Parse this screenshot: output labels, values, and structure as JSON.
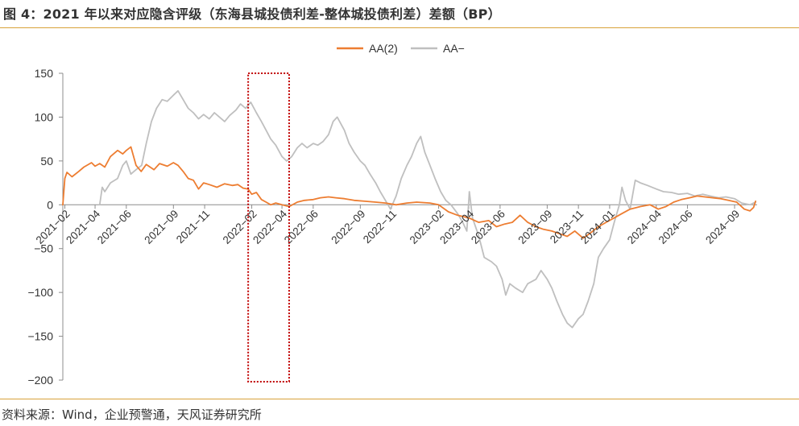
{
  "header": {
    "title": "图 4：2021 年以来对应隐含评级（东海县城投债利差-整体城投债利差）差额（BP）"
  },
  "footer": {
    "source": "资料来源：Wind，企业预警通，天风证券研究所"
  },
  "chart_data": {
    "type": "line",
    "title": "",
    "xlabel": "",
    "ylabel": "",
    "ylim": [
      -200,
      150
    ],
    "yticks": [
      150,
      100,
      50,
      0,
      -50,
      -100,
      -150,
      -200
    ],
    "grid": false,
    "legend": "top-center",
    "x_tick_labels": [
      "2021-02",
      "2021-04",
      "2021-06",
      "2021-09",
      "2021-11",
      "2022-02",
      "2022-04",
      "2022-06",
      "2022-09",
      "2022-11",
      "2023-02",
      "2023-04",
      "2023-06",
      "2023-09",
      "2023-11",
      "2024-01",
      "2024-04",
      "2024-06",
      "2024-09"
    ],
    "x_tick_dates": [
      "2021-02-01",
      "2021-04-01",
      "2021-06-01",
      "2021-09-01",
      "2021-11-01",
      "2022-02-01",
      "2022-04-01",
      "2022-06-01",
      "2022-09-01",
      "2022-11-01",
      "2023-02-01",
      "2023-04-01",
      "2023-06-01",
      "2023-09-01",
      "2023-11-01",
      "2024-01-01",
      "2024-04-01",
      "2024-06-01",
      "2024-09-01"
    ],
    "highlight_box": {
      "x_start": "2022-01-25",
      "x_end": "2022-04-15",
      "style": "dotted",
      "color": "#c00000"
    },
    "series": [
      {
        "name": "AA(2)",
        "color": "#ed7d31",
        "points": [
          [
            "2021-01-28",
            0
          ],
          [
            "2021-02-01",
            30
          ],
          [
            "2021-02-05",
            37
          ],
          [
            "2021-02-15",
            32
          ],
          [
            "2021-02-28",
            38
          ],
          [
            "2021-03-10",
            43
          ],
          [
            "2021-03-25",
            48
          ],
          [
            "2021-04-01",
            44
          ],
          [
            "2021-04-10",
            47
          ],
          [
            "2021-04-20",
            43
          ],
          [
            "2021-05-01",
            55
          ],
          [
            "2021-05-15",
            62
          ],
          [
            "2021-05-25",
            58
          ],
          [
            "2021-06-01",
            62
          ],
          [
            "2021-06-10",
            66
          ],
          [
            "2021-06-20",
            45
          ],
          [
            "2021-06-30",
            38
          ],
          [
            "2021-07-10",
            46
          ],
          [
            "2021-07-25",
            40
          ],
          [
            "2021-08-05",
            47
          ],
          [
            "2021-08-20",
            44
          ],
          [
            "2021-09-01",
            48
          ],
          [
            "2021-09-10",
            45
          ],
          [
            "2021-09-20",
            38
          ],
          [
            "2021-09-30",
            30
          ],
          [
            "2021-10-10",
            28
          ],
          [
            "2021-10-20",
            18
          ],
          [
            "2021-10-30",
            25
          ],
          [
            "2021-11-10",
            23
          ],
          [
            "2021-11-25",
            20
          ],
          [
            "2021-12-10",
            24
          ],
          [
            "2021-12-25",
            22
          ],
          [
            "2022-01-05",
            23
          ],
          [
            "2022-01-15",
            19
          ],
          [
            "2022-01-25",
            18
          ],
          [
            "2022-02-01",
            12
          ],
          [
            "2022-02-10",
            14
          ],
          [
            "2022-02-20",
            6
          ],
          [
            "2022-03-01",
            3
          ],
          [
            "2022-03-10",
            0
          ],
          [
            "2022-03-20",
            2
          ],
          [
            "2022-04-01",
            0
          ],
          [
            "2022-04-15",
            -2
          ],
          [
            "2022-05-01",
            3
          ],
          [
            "2022-05-15",
            5
          ],
          [
            "2022-06-01",
            6
          ],
          [
            "2022-06-15",
            8
          ],
          [
            "2022-07-01",
            9
          ],
          [
            "2022-07-15",
            8
          ],
          [
            "2022-08-01",
            7
          ],
          [
            "2022-08-20",
            5
          ],
          [
            "2022-09-10",
            4
          ],
          [
            "2022-10-01",
            3
          ],
          [
            "2022-10-20",
            2
          ],
          [
            "2022-11-10",
            0
          ],
          [
            "2022-12-01",
            2
          ],
          [
            "2022-12-20",
            3
          ],
          [
            "2023-01-15",
            2
          ],
          [
            "2023-02-01",
            0
          ],
          [
            "2023-02-20",
            -8
          ],
          [
            "2023-03-10",
            -12
          ],
          [
            "2023-04-01",
            -15
          ],
          [
            "2023-04-20",
            -20
          ],
          [
            "2023-05-10",
            -18
          ],
          [
            "2023-05-25",
            -25
          ],
          [
            "2023-06-10",
            -22
          ],
          [
            "2023-06-25",
            -20
          ],
          [
            "2023-07-10",
            -12
          ],
          [
            "2023-07-25",
            -20
          ],
          [
            "2023-08-10",
            -25
          ],
          [
            "2023-08-25",
            -28
          ],
          [
            "2023-09-10",
            -30
          ],
          [
            "2023-09-25",
            -33
          ],
          [
            "2023-10-10",
            -36
          ],
          [
            "2023-10-25",
            -30
          ],
          [
            "2023-11-10",
            -38
          ],
          [
            "2023-11-25",
            -32
          ],
          [
            "2023-12-10",
            -25
          ],
          [
            "2023-12-25",
            -20
          ],
          [
            "2024-01-10",
            -15
          ],
          [
            "2024-01-25",
            -10
          ],
          [
            "2024-02-10",
            -5
          ],
          [
            "2024-03-01",
            -2
          ],
          [
            "2024-03-20",
            0
          ],
          [
            "2024-04-05",
            -5
          ],
          [
            "2024-04-20",
            -2
          ],
          [
            "2024-05-05",
            3
          ],
          [
            "2024-05-20",
            6
          ],
          [
            "2024-06-05",
            8
          ],
          [
            "2024-06-20",
            10
          ],
          [
            "2024-07-05",
            9
          ],
          [
            "2024-07-20",
            8
          ],
          [
            "2024-08-05",
            7
          ],
          [
            "2024-08-20",
            5
          ],
          [
            "2024-09-05",
            3
          ],
          [
            "2024-09-20",
            -5
          ],
          [
            "2024-10-01",
            -7
          ],
          [
            "2024-10-08",
            -3
          ],
          [
            "2024-10-12",
            4
          ]
        ]
      },
      {
        "name": "AA-",
        "color": "#bfbfbf",
        "points": [
          [
            "2021-04-10",
            0
          ],
          [
            "2021-04-15",
            20
          ],
          [
            "2021-04-20",
            15
          ],
          [
            "2021-05-01",
            25
          ],
          [
            "2021-05-15",
            30
          ],
          [
            "2021-05-25",
            45
          ],
          [
            "2021-06-01",
            50
          ],
          [
            "2021-06-10",
            35
          ],
          [
            "2021-06-20",
            40
          ],
          [
            "2021-07-01",
            45
          ],
          [
            "2021-07-10",
            70
          ],
          [
            "2021-07-20",
            95
          ],
          [
            "2021-07-30",
            110
          ],
          [
            "2021-08-10",
            120
          ],
          [
            "2021-08-20",
            118
          ],
          [
            "2021-09-01",
            125
          ],
          [
            "2021-09-10",
            130
          ],
          [
            "2021-09-20",
            120
          ],
          [
            "2021-09-30",
            110
          ],
          [
            "2021-10-10",
            105
          ],
          [
            "2021-10-20",
            98
          ],
          [
            "2021-10-30",
            103
          ],
          [
            "2021-11-10",
            98
          ],
          [
            "2021-11-20",
            105
          ],
          [
            "2021-11-30",
            100
          ],
          [
            "2021-12-10",
            95
          ],
          [
            "2021-12-20",
            102
          ],
          [
            "2022-01-01",
            108
          ],
          [
            "2022-01-10",
            115
          ],
          [
            "2022-01-20",
            110
          ],
          [
            "2022-01-30",
            117
          ],
          [
            "2022-02-10",
            105
          ],
          [
            "2022-02-20",
            95
          ],
          [
            "2022-03-01",
            85
          ],
          [
            "2022-03-10",
            75
          ],
          [
            "2022-03-20",
            68
          ],
          [
            "2022-04-01",
            55
          ],
          [
            "2022-04-10",
            50
          ],
          [
            "2022-04-20",
            55
          ],
          [
            "2022-05-01",
            65
          ],
          [
            "2022-05-10",
            70
          ],
          [
            "2022-05-20",
            65
          ],
          [
            "2022-06-01",
            70
          ],
          [
            "2022-06-10",
            68
          ],
          [
            "2022-06-20",
            72
          ],
          [
            "2022-07-01",
            80
          ],
          [
            "2022-07-10",
            95
          ],
          [
            "2022-07-18",
            100
          ],
          [
            "2022-08-01",
            85
          ],
          [
            "2022-08-10",
            70
          ],
          [
            "2022-08-20",
            60
          ],
          [
            "2022-09-01",
            50
          ],
          [
            "2022-09-10",
            45
          ],
          [
            "2022-09-20",
            35
          ],
          [
            "2022-10-01",
            25
          ],
          [
            "2022-10-10",
            15
          ],
          [
            "2022-10-20",
            5
          ],
          [
            "2022-10-30",
            -5
          ],
          [
            "2022-11-10",
            10
          ],
          [
            "2022-11-20",
            30
          ],
          [
            "2022-12-01",
            45
          ],
          [
            "2022-12-10",
            55
          ],
          [
            "2022-12-20",
            70
          ],
          [
            "2022-12-28",
            78
          ],
          [
            "2023-01-05",
            60
          ],
          [
            "2023-01-15",
            45
          ],
          [
            "2023-01-25",
            30
          ],
          [
            "2023-02-05",
            15
          ],
          [
            "2023-02-15",
            5
          ],
          [
            "2023-02-25",
            0
          ],
          [
            "2023-03-10",
            -10
          ],
          [
            "2023-03-20",
            -20
          ],
          [
            "2023-03-28",
            -30
          ],
          [
            "2023-04-02",
            15
          ],
          [
            "2023-04-08",
            -15
          ],
          [
            "2023-04-20",
            -35
          ],
          [
            "2023-05-01",
            -60
          ],
          [
            "2023-05-15",
            -65
          ],
          [
            "2023-05-25",
            -70
          ],
          [
            "2023-06-05",
            -85
          ],
          [
            "2023-06-12",
            -103
          ],
          [
            "2023-06-20",
            -90
          ],
          [
            "2023-07-01",
            -95
          ],
          [
            "2023-07-15",
            -100
          ],
          [
            "2023-07-25",
            -90
          ],
          [
            "2023-08-10",
            -85
          ],
          [
            "2023-08-20",
            -75
          ],
          [
            "2023-09-01",
            -85
          ],
          [
            "2023-09-10",
            -95
          ],
          [
            "2023-09-20",
            -110
          ],
          [
            "2023-10-01",
            -125
          ],
          [
            "2023-10-10",
            -135
          ],
          [
            "2023-10-20",
            -140
          ],
          [
            "2023-11-01",
            -130
          ],
          [
            "2023-11-10",
            -125
          ],
          [
            "2023-11-20",
            -110
          ],
          [
            "2023-12-01",
            -90
          ],
          [
            "2023-12-10",
            -60
          ],
          [
            "2023-12-20",
            -50
          ],
          [
            "2024-01-01",
            -40
          ],
          [
            "2024-01-10",
            -20
          ],
          [
            "2024-01-20",
            0
          ],
          [
            "2024-01-25",
            20
          ],
          [
            "2024-02-01",
            5
          ],
          [
            "2024-02-10",
            -5
          ],
          [
            "2024-02-20",
            28
          ],
          [
            "2024-03-01",
            25
          ],
          [
            "2024-03-15",
            22
          ],
          [
            "2024-04-01",
            18
          ],
          [
            "2024-04-15",
            15
          ],
          [
            "2024-05-01",
            14
          ],
          [
            "2024-05-15",
            12
          ],
          [
            "2024-06-01",
            13
          ],
          [
            "2024-06-15",
            10
          ],
          [
            "2024-07-01",
            12
          ],
          [
            "2024-07-15",
            10
          ],
          [
            "2024-08-01",
            8
          ],
          [
            "2024-08-15",
            9
          ],
          [
            "2024-09-01",
            7
          ],
          [
            "2024-09-15",
            2
          ],
          [
            "2024-10-01",
            0
          ],
          [
            "2024-10-12",
            3
          ]
        ]
      }
    ]
  }
}
